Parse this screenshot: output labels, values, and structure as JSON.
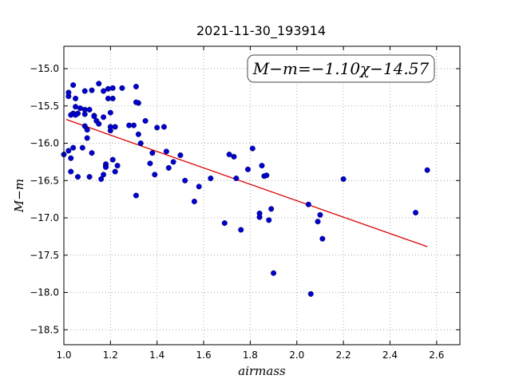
{
  "chart_data": {
    "type": "scatter",
    "title": "2021-11-30_193914",
    "xlabel": "airmass",
    "ylabel": "M−m",
    "xlim": [
      1.0,
      2.7
    ],
    "ylim": [
      -18.7,
      -14.7
    ],
    "y_inverted": true,
    "grid": true,
    "grid_style": "dotted",
    "x_ticks": [
      "1.0",
      "1.2",
      "1.4",
      "1.6",
      "1.8",
      "2.0",
      "2.2",
      "2.4",
      "2.6"
    ],
    "y_ticks": [
      "−15.0",
      "−15.5",
      "−16.0",
      "−16.5",
      "−17.0",
      "−17.5",
      "−18.0",
      "−18.5"
    ],
    "annotation": "M−m=−1.10χ−14.57",
    "colors": {
      "points": "#0000cc",
      "fit_line": "#dd0000",
      "grid": "#999999"
    },
    "fit_line": {
      "slope": -1.1,
      "intercept": -14.57,
      "x_range": [
        1.01,
        2.56
      ]
    },
    "series": [
      {
        "marker": "circle",
        "x": [
          1.0,
          1.02,
          1.03,
          1.03,
          1.04,
          1.02,
          1.04,
          1.05,
          1.06,
          1.02,
          1.04,
          1.05,
          1.06,
          1.08,
          1.09,
          1.09,
          1.09,
          1.1,
          1.1,
          1.11,
          1.12,
          1.13,
          1.13,
          1.14,
          1.15,
          1.16,
          1.17,
          1.17,
          1.18,
          1.18,
          1.19,
          1.19,
          1.2,
          1.2,
          1.21,
          1.21,
          1.21,
          1.22,
          1.23,
          1.25,
          1.28,
          1.3,
          1.31,
          1.32,
          1.33,
          1.35,
          1.37,
          1.38,
          1.39,
          1.4,
          1.43,
          1.44,
          1.45,
          1.47,
          1.5,
          1.52,
          1.56,
          1.58,
          1.63,
          1.69,
          1.71,
          1.73,
          1.74,
          1.76,
          1.79,
          1.81,
          1.84,
          1.84,
          1.85,
          1.86,
          1.87,
          1.88,
          1.89,
          1.9,
          2.05,
          2.06,
          2.09,
          2.1,
          2.11,
          2.2,
          2.51,
          2.56,
          1.03,
          1.05,
          1.07,
          1.09,
          1.12,
          1.17,
          1.22,
          1.31,
          1.11,
          1.15,
          1.2,
          1.32,
          1.18,
          1.31
        ],
        "y": [
          -16.15,
          -16.1,
          -16.2,
          -16.38,
          -16.06,
          -15.37,
          -15.22,
          -15.4,
          -16.45,
          -15.32,
          -15.6,
          -15.51,
          -15.6,
          -16.06,
          -15.55,
          -15.61,
          -15.77,
          -15.82,
          -15.93,
          -16.45,
          -16.13,
          -15.63,
          -15.64,
          -15.7,
          -15.2,
          -16.48,
          -15.3,
          -16.42,
          -16.28,
          -16.31,
          -15.27,
          -15.4,
          -15.59,
          -15.83,
          -15.26,
          -15.4,
          -16.22,
          -16.38,
          -16.3,
          -15.26,
          -15.76,
          -15.76,
          -16.7,
          -15.46,
          -16.0,
          -15.7,
          -16.27,
          -16.13,
          -16.42,
          -15.79,
          -15.78,
          -16.11,
          -16.33,
          -16.25,
          -16.16,
          -16.5,
          -16.78,
          -16.58,
          -16.47,
          -17.07,
          -16.15,
          -16.18,
          -16.47,
          -17.16,
          -16.35,
          -16.07,
          -16.94,
          -16.99,
          -16.3,
          -16.44,
          -16.43,
          -17.03,
          -16.88,
          -17.74,
          -16.82,
          -18.02,
          -17.05,
          -16.96,
          -17.28,
          -16.48,
          -16.93,
          -16.36,
          -15.62,
          -15.62,
          -15.53,
          -15.3,
          -15.29,
          -15.65,
          -15.78,
          -15.24,
          -15.55,
          -15.74,
          -15.78,
          -15.88,
          -16.32,
          -15.45
        ]
      }
    ]
  }
}
